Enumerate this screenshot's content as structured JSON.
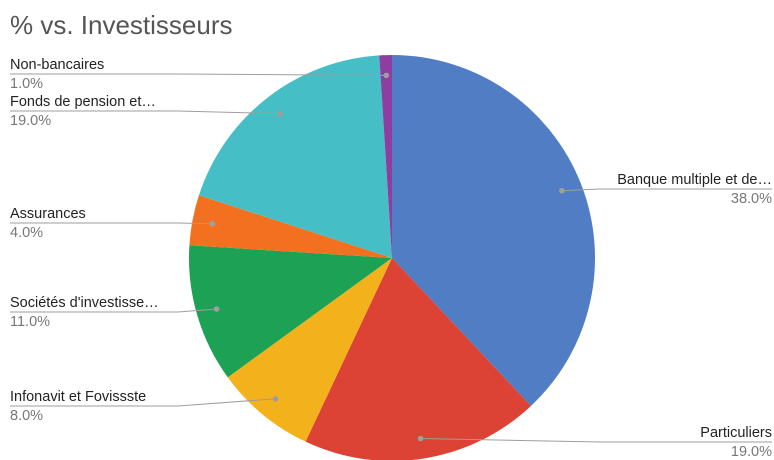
{
  "chart_data": {
    "type": "pie",
    "title": "% vs. Investisseurs",
    "slices": [
      {
        "label": "Banque multiple et de…",
        "value": 38.0,
        "pct_label": "38.0%",
        "color": "#507dc3"
      },
      {
        "label": "Particuliers",
        "value": 19.0,
        "pct_label": "19.0%",
        "color": "#dc4334"
      },
      {
        "label": "Infonavit et Fovissste",
        "value": 8.0,
        "pct_label": "8.0%",
        "color": "#f3b21b"
      },
      {
        "label": "Sociétés d'investisse…",
        "value": 11.0,
        "pct_label": "11.0%",
        "color": "#1ca155"
      },
      {
        "label": "Assurances",
        "value": 4.0,
        "pct_label": "4.0%",
        "color": "#f37021"
      },
      {
        "label": "Fonds de pension et…",
        "value": 19.0,
        "pct_label": "19.0%",
        "color": "#46bec6"
      },
      {
        "label": "Non-bancaires",
        "value": 1.0,
        "pct_label": "1.0%",
        "color": "#8e3da1"
      }
    ]
  }
}
